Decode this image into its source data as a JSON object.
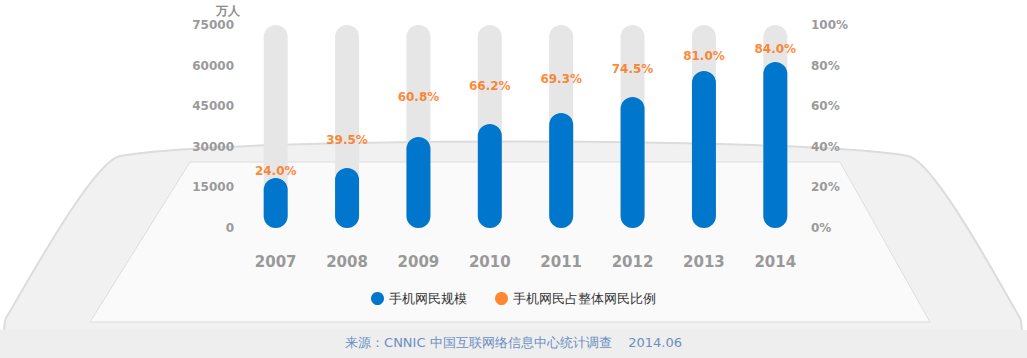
{
  "chart_data": {
    "type": "bar",
    "y_label": "万人",
    "categories": [
      "2007",
      "2008",
      "2009",
      "2010",
      "2011",
      "2012",
      "2013",
      "2014"
    ],
    "series": [
      {
        "name": "手机网民规模",
        "color": "#0077cc",
        "values": [
          18500,
          22200,
          33600,
          38400,
          42500,
          48400,
          58000,
          61300
        ],
        "data_labels": false
      },
      {
        "name": "手机网民占整体网民比例",
        "type": "scatter",
        "axis": "y2",
        "color": "#ff6a00",
        "values": [
          24.0,
          39.5,
          60.8,
          66.2,
          69.3,
          74.5,
          81.0,
          84.0
        ],
        "value_labels": [
          "24.0%",
          "39.5%",
          "60.8%",
          "66.2%",
          "69.3%",
          "74.5%",
          "81.0%",
          "84.0%"
        ],
        "data_labels": true
      }
    ],
    "ylim": [
      0,
      75000
    ],
    "yticks": [
      0,
      15000,
      30000,
      45000,
      60000,
      75000
    ],
    "y2lim": [
      0,
      100
    ],
    "y2ticks": [
      {
        "value": 0,
        "label": "0%"
      },
      {
        "value": 20,
        "label": "20%"
      },
      {
        "value": 40,
        "label": "40%"
      },
      {
        "value": 60,
        "label": "60%"
      },
      {
        "value": 80,
        "label": "80%"
      },
      {
        "value": 100,
        "label": "100%"
      }
    ],
    "grid": false,
    "legend": "bottom",
    "source": "来源：CNNIC 中国互联网络信息中心统计调查    2014.06"
  }
}
